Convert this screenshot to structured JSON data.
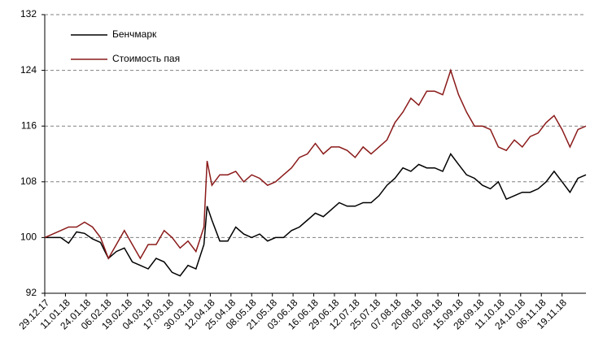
{
  "chart_data": {
    "type": "line",
    "x": [
      0,
      10,
      15,
      20,
      25,
      30,
      35,
      40,
      45,
      50,
      55,
      60,
      65,
      70,
      75,
      80,
      85,
      90,
      95,
      100,
      102,
      105,
      110,
      115,
      120,
      125,
      130,
      135,
      140,
      145,
      150,
      155,
      160,
      165,
      170,
      175,
      180,
      185,
      190,
      195,
      200,
      205,
      210,
      215,
      220,
      225,
      230,
      235,
      240,
      245,
      250,
      255,
      260,
      265,
      270,
      275,
      280,
      285,
      290,
      295,
      300,
      305,
      310,
      315,
      320,
      325,
      330,
      335,
      340
    ],
    "series": [
      {
        "name": "Бенчмарк",
        "color": "#000000",
        "values": [
          100,
          100,
          99.2,
          100.8,
          100.6,
          99.8,
          99.3,
          97,
          98,
          98.5,
          96.5,
          96,
          95.5,
          97,
          96.5,
          95,
          94.5,
          96,
          95.5,
          99,
          104.5,
          102.5,
          99.5,
          99.5,
          101.5,
          100.5,
          100,
          100.5,
          99.5,
          100,
          100,
          101,
          101.5,
          102.5,
          103.5,
          103,
          104,
          105,
          104.5,
          104.5,
          105,
          105,
          106,
          107.5,
          108.5,
          110,
          109.5,
          110.5,
          110,
          110,
          109.5,
          112,
          110.5,
          109,
          108.5,
          107.5,
          107,
          108,
          105.5,
          106,
          106.5,
          106.5,
          107,
          108,
          109.5,
          108,
          106.5,
          108.5,
          109
        ]
      },
      {
        "name": "Стоимость пая",
        "color": "#8b1a1a",
        "values": [
          100,
          101,
          101.5,
          101.5,
          102.2,
          101.5,
          100,
          97,
          99,
          101,
          99,
          97,
          99,
          99,
          101,
          100,
          98.5,
          99.5,
          98,
          101.5,
          111,
          107.5,
          109,
          109,
          109.5,
          108,
          109,
          108.5,
          107.5,
          108,
          109,
          110,
          111.5,
          112,
          113.5,
          112,
          113,
          113,
          112.5,
          111.5,
          113,
          112,
          113,
          114,
          116.5,
          118,
          120,
          119,
          121,
          121,
          120.5,
          124,
          120.5,
          118,
          116,
          116,
          115.5,
          113,
          112.5,
          114,
          113,
          114.5,
          115,
          116.5,
          117.5,
          115.5,
          113,
          115.5,
          116
        ]
      }
    ],
    "xlim": [
      0,
      340
    ],
    "xticks": [
      {
        "value": 0,
        "label": "29.12.17"
      },
      {
        "value": 13,
        "label": "11.01.18"
      },
      {
        "value": 26,
        "label": "24.01.18"
      },
      {
        "value": 39,
        "label": "06.02.18"
      },
      {
        "value": 52,
        "label": "19.02.18"
      },
      {
        "value": 65,
        "label": "04.03.18"
      },
      {
        "value": 78,
        "label": "17.03.18"
      },
      {
        "value": 91,
        "label": "30.03.18"
      },
      {
        "value": 104,
        "label": "12.04.18"
      },
      {
        "value": 117,
        "label": "25.04.18"
      },
      {
        "value": 130,
        "label": "08.05.18"
      },
      {
        "value": 143,
        "label": "21.05.18"
      },
      {
        "value": 156,
        "label": "03.06.18"
      },
      {
        "value": 169,
        "label": "16.06.18"
      },
      {
        "value": 182,
        "label": "29.06.18"
      },
      {
        "value": 195,
        "label": "12.07.18"
      },
      {
        "value": 208,
        "label": "25.07.18"
      },
      {
        "value": 221,
        "label": "07.08.18"
      },
      {
        "value": 234,
        "label": "20.08.18"
      },
      {
        "value": 247,
        "label": "02.09.18"
      },
      {
        "value": 260,
        "label": "15.09.18"
      },
      {
        "value": 273,
        "label": "28.09.18"
      },
      {
        "value": 286,
        "label": "11.10.18"
      },
      {
        "value": 299,
        "label": "24.10.18"
      },
      {
        "value": 312,
        "label": "06.11.18"
      },
      {
        "value": 325,
        "label": "19.11.18"
      }
    ],
    "ylim": [
      92,
      132
    ],
    "yticks": [
      92,
      100,
      108,
      116,
      124,
      132
    ],
    "grid": true,
    "legend": "upper left"
  }
}
